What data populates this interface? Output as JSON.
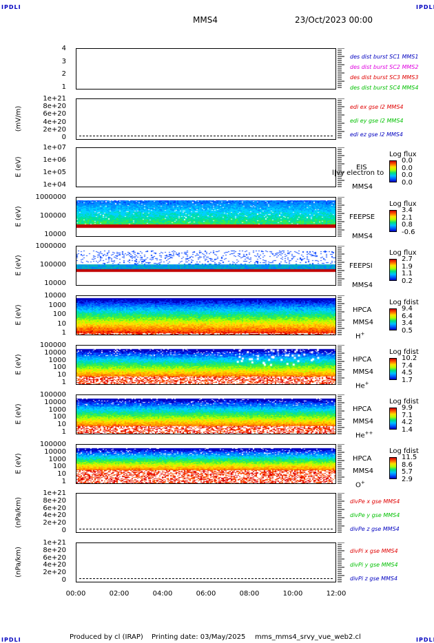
{
  "header": {
    "corner_label": "IPDLI",
    "spacecraft": "MMS4",
    "date_time": "23/Oct/2023 00:00"
  },
  "footer": {
    "produced_by": "Produced by  cl (IRAP)",
    "printing_date": "Printing date: 03/May/2025",
    "script": "mms_mms4_srvy_vue_web2.cl"
  },
  "chart_data": [
    {
      "type": "line",
      "panel": "burst",
      "ylabel": "",
      "yticks": [
        "4",
        "3",
        "2",
        "1"
      ],
      "ylim": [
        0.5,
        4.5
      ],
      "series": [],
      "legend": [
        {
          "name": "des dist burst SC1 MMS1",
          "color": "#0000c0"
        },
        {
          "name": "des dist burst SC2 MMS2",
          "color": "#e000e0"
        },
        {
          "name": "des dist burst SC3 MMS3",
          "color": "#e00000"
        },
        {
          "name": "des dist burst SC4 MMS4",
          "color": "#00c000"
        }
      ]
    },
    {
      "type": "line",
      "panel": "edi",
      "ylabel": "(mV/m)",
      "yticks": [
        "1e+21",
        "8e+20",
        "6e+20",
        "4e+20",
        "2e+20",
        "0"
      ],
      "ylim": [
        0,
        1e+21
      ],
      "series": [],
      "legend": [
        {
          "name": "edi ex gse l2 MMS4",
          "color": "#e00000"
        },
        {
          "name": "edi ey gse l2 MMS4",
          "color": "#00c000"
        },
        {
          "name": "edi ez gse l2 MMS4",
          "color": "#0000c0"
        }
      ]
    },
    {
      "type": "heatmap",
      "panel": "eis",
      "ylabel": "E (eV)",
      "yticks": [
        "1e+07",
        "1e+06",
        "1e+05",
        "1e+04"
      ],
      "ylim": [
        10000.0,
        10000000.0
      ],
      "instrument": "EIS",
      "spacecraft": "MMS4",
      "overlay_text": "l|vy electron to",
      "colorbar": {
        "title": "Log flux",
        "ticks": [
          "0.0",
          "0.0",
          "0.0",
          "0.0"
        ]
      }
    },
    {
      "type": "heatmap",
      "panel": "feepse",
      "ylabel": "E (eV)",
      "yticks": [
        "1000000",
        "100000",
        "10000"
      ],
      "ylim": [
        10000.0,
        1000000.0
      ],
      "instrument": "FEEPSE",
      "spacecraft": "MMS4",
      "colorbar": {
        "title": "Log flux",
        "ticks": [
          "3.4",
          "2.1",
          "0.8",
          "-0.6"
        ]
      }
    },
    {
      "type": "heatmap",
      "panel": "feepsi",
      "ylabel": "E (eV)",
      "yticks": [
        "1000000",
        "100000",
        "10000"
      ],
      "ylim": [
        10000.0,
        1000000.0
      ],
      "instrument": "FEEPSI",
      "spacecraft": "MMS4",
      "colorbar": {
        "title": "Log flux",
        "ticks": [
          "2.7",
          "1.9",
          "1.1",
          "0.2"
        ]
      }
    },
    {
      "type": "heatmap",
      "panel": "hpca_h",
      "ylabel": "E (eV)",
      "yticks": [
        "10000",
        "1000",
        "100",
        "10",
        "1"
      ],
      "ylim": [
        1,
        30000
      ],
      "instrument": "HPCA",
      "spacecraft": "MMS4",
      "species": "H",
      "species_charge": "+",
      "colorbar": {
        "title": "Log fdist",
        "ticks": [
          "9.4",
          "6.4",
          "3.4",
          "0.5"
        ]
      }
    },
    {
      "type": "heatmap",
      "panel": "hpca_he",
      "ylabel": "E (eV)",
      "yticks": [
        "100000",
        "10000",
        "1000",
        "100",
        "10",
        "1"
      ],
      "ylim": [
        1,
        100000
      ],
      "instrument": "HPCA",
      "spacecraft": "MMS4",
      "species": "He",
      "species_charge": "+",
      "colorbar": {
        "title": "Log fdist",
        "ticks": [
          "10.2",
          "7.4",
          "4.5",
          "1.7"
        ]
      }
    },
    {
      "type": "heatmap",
      "panel": "hpca_hepp",
      "ylabel": "E (eV)",
      "yticks": [
        "100000",
        "10000",
        "1000",
        "100",
        "10",
        "1"
      ],
      "ylim": [
        1,
        100000
      ],
      "instrument": "HPCA",
      "spacecraft": "MMS4",
      "species": "He",
      "species_charge": "++",
      "colorbar": {
        "title": "Log fdist",
        "ticks": [
          "9.9",
          "7.1",
          "4.2",
          "1.4"
        ]
      }
    },
    {
      "type": "heatmap",
      "panel": "hpca_o",
      "ylabel": "E (eV)",
      "yticks": [
        "100000",
        "10000",
        "1000",
        "100",
        "10",
        "1"
      ],
      "ylim": [
        1,
        100000
      ],
      "instrument": "HPCA",
      "spacecraft": "MMS4",
      "species": "O",
      "species_charge": "+",
      "colorbar": {
        "title": "Log fdist",
        "ticks": [
          "11.5",
          "8.6",
          "5.7",
          "2.9"
        ]
      }
    },
    {
      "type": "line",
      "panel": "divpe",
      "ylabel": "(nPa/km)",
      "yticks": [
        "1e+21",
        "8e+20",
        "6e+20",
        "4e+20",
        "2e+20",
        "0"
      ],
      "ylim": [
        0,
        1e+21
      ],
      "series": [],
      "legend": [
        {
          "name": "divPe x gse MMS4",
          "color": "#e00000"
        },
        {
          "name": "divPe y gse MMS4",
          "color": "#00c000"
        },
        {
          "name": "divPe z gse MMS4",
          "color": "#0000c0"
        }
      ]
    },
    {
      "type": "line",
      "panel": "divpi",
      "ylabel": "(nPa/km)",
      "yticks": [
        "1e+21",
        "8e+20",
        "6e+20",
        "4e+20",
        "2e+20",
        "0"
      ],
      "ylim": [
        0,
        1e+21
      ],
      "series": [],
      "legend": [
        {
          "name": "divPi x gse MMS4",
          "color": "#e00000"
        },
        {
          "name": "divPi y gse MMS4",
          "color": "#00c000"
        },
        {
          "name": "divPi z gse MMS4",
          "color": "#0000c0"
        }
      ]
    }
  ],
  "x_axis": {
    "ticks": [
      "00:00",
      "02:00",
      "04:00",
      "06:00",
      "08:00",
      "10:00",
      "12:00"
    ],
    "xlim": [
      "00:00",
      "12:00"
    ]
  }
}
